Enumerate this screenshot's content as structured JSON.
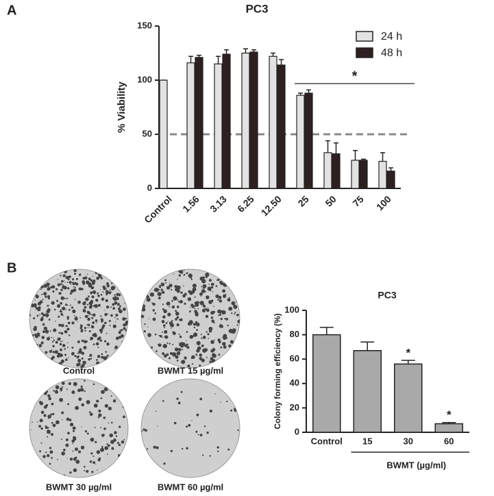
{
  "panel_labels": [
    "A",
    "B"
  ],
  "plates": [
    "Control",
    "BWMT 15 µg/ml",
    "BWMT 30 µg/ml",
    "BWMT 60 µg/ml"
  ],
  "chart_data": [
    {
      "type": "bar",
      "title": "PC3",
      "y_label": "% Viability",
      "categories": [
        "Control",
        "1.56",
        "3.13",
        "6.25",
        "12.50",
        "25",
        "50",
        "75",
        "100"
      ],
      "series": [
        {
          "name": "24 h",
          "color": "#e2e2e2",
          "values": [
            100,
            116,
            115,
            125,
            122,
            86,
            33,
            26,
            25
          ],
          "errors": [
            0,
            6,
            7,
            4,
            3,
            2,
            11,
            9,
            8
          ]
        },
        {
          "name": "48 h",
          "color": "#2e2020",
          "values": [
            null,
            121,
            124,
            126,
            114,
            88,
            32,
            26,
            16
          ],
          "errors": [
            null,
            2,
            4,
            2,
            5,
            3,
            10,
            1,
            3
          ]
        }
      ],
      "ylim": [
        0,
        150
      ],
      "yticks": [
        0,
        50,
        100,
        150
      ],
      "reference_line": 50,
      "annotation": "*",
      "legend": "top-right"
    },
    {
      "type": "bar",
      "title": "PC3",
      "y_label": "Colony forming efficiency (%)",
      "x_group_label": "BWMT (µg/ml)",
      "categories": [
        "Control",
        "15",
        "30",
        "60"
      ],
      "values": [
        80,
        67,
        56,
        7
      ],
      "errors": [
        6,
        7,
        3,
        1
      ],
      "value_annotations": [
        null,
        null,
        "*",
        "*"
      ],
      "color": "#a9a9a9",
      "ylim": [
        0,
        100
      ],
      "yticks": [
        0,
        20,
        40,
        60,
        80,
        100
      ]
    }
  ]
}
